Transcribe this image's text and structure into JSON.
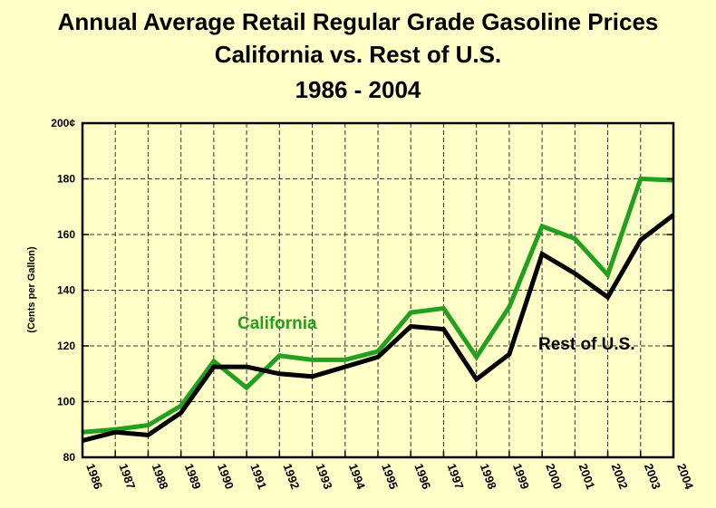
{
  "chart_data": {
    "type": "line",
    "title_lines": [
      "Annual Average Retail Regular Grade Gasoline Prices",
      "California vs. Rest of U.S.",
      "1986 - 2004"
    ],
    "xlabel": "",
    "ylabel": "(Cents per Gallon)",
    "ylim": [
      80,
      200
    ],
    "yticks": [
      "80",
      "100",
      "120",
      "140",
      "160",
      "180",
      "200¢"
    ],
    "x": [
      "1986",
      "1987",
      "1988",
      "1989",
      "1990",
      "1991",
      "1992",
      "1993",
      "1994",
      "1995",
      "1996",
      "1997",
      "1998",
      "1999",
      "2000",
      "2001",
      "2002",
      "2003",
      "2004"
    ],
    "grid": true,
    "series": [
      {
        "name": "California",
        "color": "#22A01E",
        "values": [
          89,
          90,
          91.5,
          98.5,
          114.5,
          105,
          116.5,
          115,
          115,
          118,
          132,
          133.5,
          116,
          134,
          163,
          158.5,
          145.5,
          180,
          179.5
        ]
      },
      {
        "name": "Rest of U.S.",
        "color": "#000000",
        "values": [
          86,
          89,
          88,
          96,
          112.5,
          112.5,
          110,
          109,
          112.5,
          116,
          127,
          126,
          108,
          117,
          153,
          146,
          137.5,
          158,
          167
        ]
      }
    ]
  }
}
